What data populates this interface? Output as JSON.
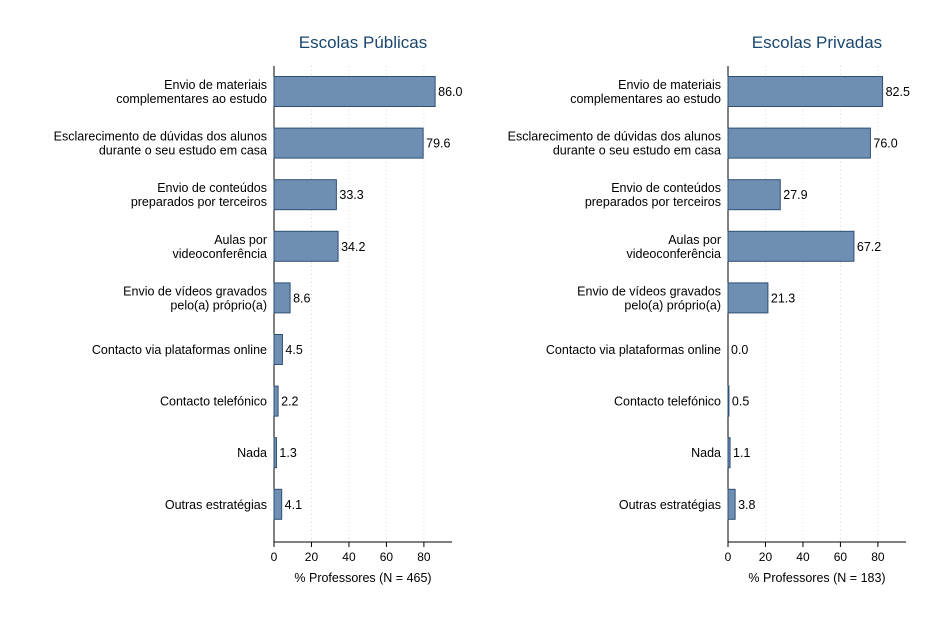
{
  "chart_data": [
    {
      "type": "bar",
      "orientation": "horizontal",
      "title": "Escolas Públicas",
      "xlabel": "% Professores (N = 465)",
      "xlim": [
        0,
        95
      ],
      "xticks": [
        0,
        20,
        40,
        60,
        80
      ],
      "grid": "vertical dotted",
      "bar_color": "#6e8fb3",
      "categories": [
        [
          "Envio de materiais",
          "complementares ao estudo"
        ],
        [
          "Esclarecimento de dúvidas dos alunos",
          "durante o seu estudo em casa"
        ],
        [
          "Envio de conteúdos",
          "preparados por terceiros"
        ],
        [
          "Aulas por",
          "videoconferência"
        ],
        [
          "Envio de vídeos gravados",
          "pelo(a) próprio(a)"
        ],
        [
          "Contacto via plataformas online"
        ],
        [
          "Contacto telefónico"
        ],
        [
          "Nada"
        ],
        [
          "Outras estratégias"
        ]
      ],
      "values": [
        86.0,
        79.6,
        33.3,
        34.2,
        8.6,
        4.5,
        2.2,
        1.3,
        4.1
      ],
      "value_labels": [
        "86.0",
        "79.6",
        "33.3",
        "34.2",
        "8.6",
        "4.5",
        "2.2",
        "1.3",
        "4.1"
      ]
    },
    {
      "type": "bar",
      "orientation": "horizontal",
      "title": "Escolas Privadas",
      "xlabel": "% Professores (N = 183)",
      "xlim": [
        0,
        95
      ],
      "xticks": [
        0,
        20,
        40,
        60,
        80
      ],
      "grid": "vertical dotted",
      "bar_color": "#6e8fb3",
      "categories": [
        [
          "Envio de materiais",
          "complementares ao estudo"
        ],
        [
          "Esclarecimento de dúvidas dos alunos",
          "durante o seu estudo em casa"
        ],
        [
          "Envio de conteúdos",
          "preparados por terceiros"
        ],
        [
          "Aulas por",
          "videoconferência"
        ],
        [
          "Envio de vídeos gravados",
          "pelo(a) próprio(a)"
        ],
        [
          "Contacto via plataformas online"
        ],
        [
          "Contacto telefónico"
        ],
        [
          "Nada"
        ],
        [
          "Outras estratégias"
        ]
      ],
      "values": [
        82.5,
        76.0,
        27.9,
        67.2,
        21.3,
        0.0,
        0.5,
        1.1,
        3.8
      ],
      "value_labels": [
        "82.5",
        "76.0",
        "27.9",
        "67.2",
        "21.3",
        "0.0",
        "0.5",
        "1.1",
        "3.8"
      ]
    }
  ]
}
